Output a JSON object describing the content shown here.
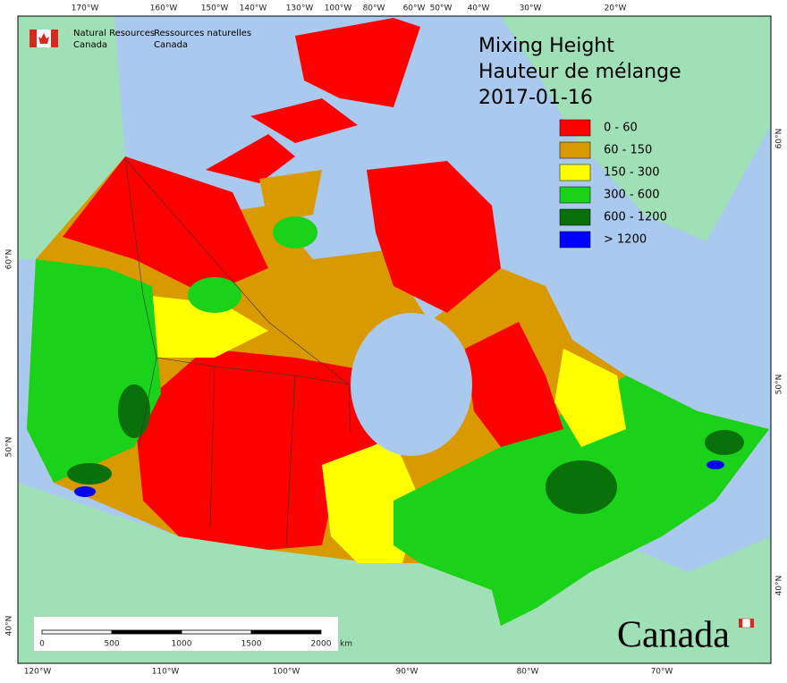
{
  "header": {
    "english": [
      "Natural Resources",
      "Canada"
    ],
    "french": [
      "Ressources naturelles",
      "Canada"
    ]
  },
  "title": [
    "Mixing Height",
    "Hauteur de mélange",
    "2017-01-16"
  ],
  "legend": [
    {
      "label": "0 - 60",
      "color": "#ff0000"
    },
    {
      "label": "60 - 150",
      "color": "#d99a00"
    },
    {
      "label": "150 - 300",
      "color": "#ffff00"
    },
    {
      "label": "300 - 600",
      "color": "#19d219"
    },
    {
      "label": "600 - 1200",
      "color": "#0a700a"
    },
    {
      "label": "> 1200",
      "color": "#0000ff"
    }
  ],
  "top_axis": [
    "170°W",
    "160°W",
    "150°W",
    "140°W",
    "130°W",
    "100°W",
    "80°W",
    "60°W",
    "50°W",
    "40°W",
    "30°W",
    "20°W"
  ],
  "bottom_axis": [
    "120°W",
    "110°W",
    "100°W",
    "90°W",
    "80°W",
    "70°W"
  ],
  "left_axis": [
    "60°N",
    "50°N",
    "40°N"
  ],
  "right_axis": [
    "60°N",
    "50°N",
    "40°N"
  ],
  "scale_bar": {
    "labels": [
      "0",
      "500",
      "1000",
      "1500",
      "2000"
    ],
    "unit": "km"
  },
  "wordmark": "Canada"
}
